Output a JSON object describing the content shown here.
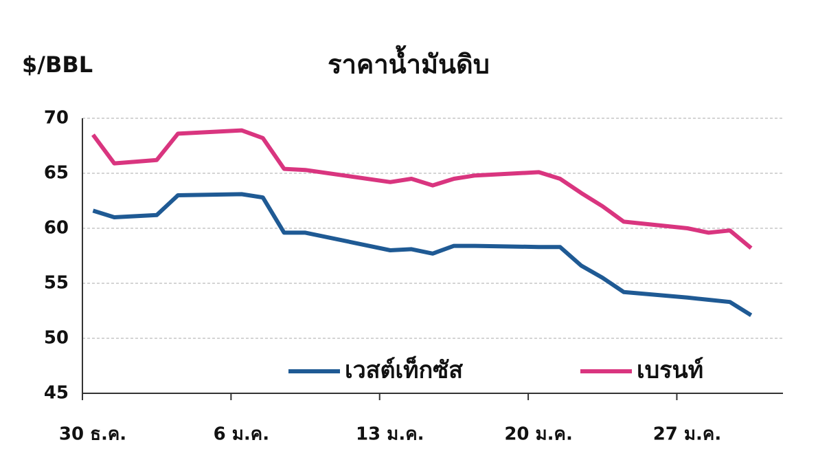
{
  "chart_data": {
    "type": "line",
    "title": "ราคาน้ำมันดิบ",
    "y_label": "$/BBL",
    "x": [
      0.5,
      1.5,
      3.5,
      4.5,
      7.5,
      8.5,
      9.5,
      10.5,
      14.5,
      15.5,
      16.5,
      17.5,
      18.5,
      21.5,
      22.5,
      23.5,
      24.5,
      25.5,
      28.5,
      29.5,
      30.5,
      31.5
    ],
    "xlim": [
      0,
      33
    ],
    "xticks": [
      {
        "value": 0,
        "label": "30 ธ.ค."
      },
      {
        "value": 7,
        "label": "6 ม.ค."
      },
      {
        "value": 14,
        "label": "13 ม.ค."
      },
      {
        "value": 21,
        "label": "20 ม.ค."
      },
      {
        "value": 28,
        "label": "27 ม.ค."
      }
    ],
    "ylim": [
      45,
      70
    ],
    "yticks": [
      45,
      50,
      55,
      60,
      65,
      70
    ],
    "grid": true,
    "legend": "bottom",
    "series": [
      {
        "name": "เวสต์เท็กซัส",
        "color": "#1f5a94",
        "values": [
          61.6,
          61.0,
          61.2,
          63.0,
          63.1,
          62.8,
          59.6,
          59.6,
          58.0,
          58.1,
          57.7,
          58.4,
          58.4,
          58.3,
          58.3,
          56.6,
          55.5,
          54.2,
          53.7,
          53.5,
          53.3,
          52.1
        ]
      },
      {
        "name": "เบรนท์",
        "color": "#d9357f",
        "values": [
          68.5,
          65.9,
          66.2,
          68.6,
          68.9,
          68.2,
          65.4,
          65.3,
          64.2,
          64.5,
          63.9,
          64.5,
          64.8,
          65.1,
          64.5,
          63.2,
          62.0,
          60.6,
          60.0,
          59.6,
          59.8,
          58.2
        ]
      }
    ]
  }
}
